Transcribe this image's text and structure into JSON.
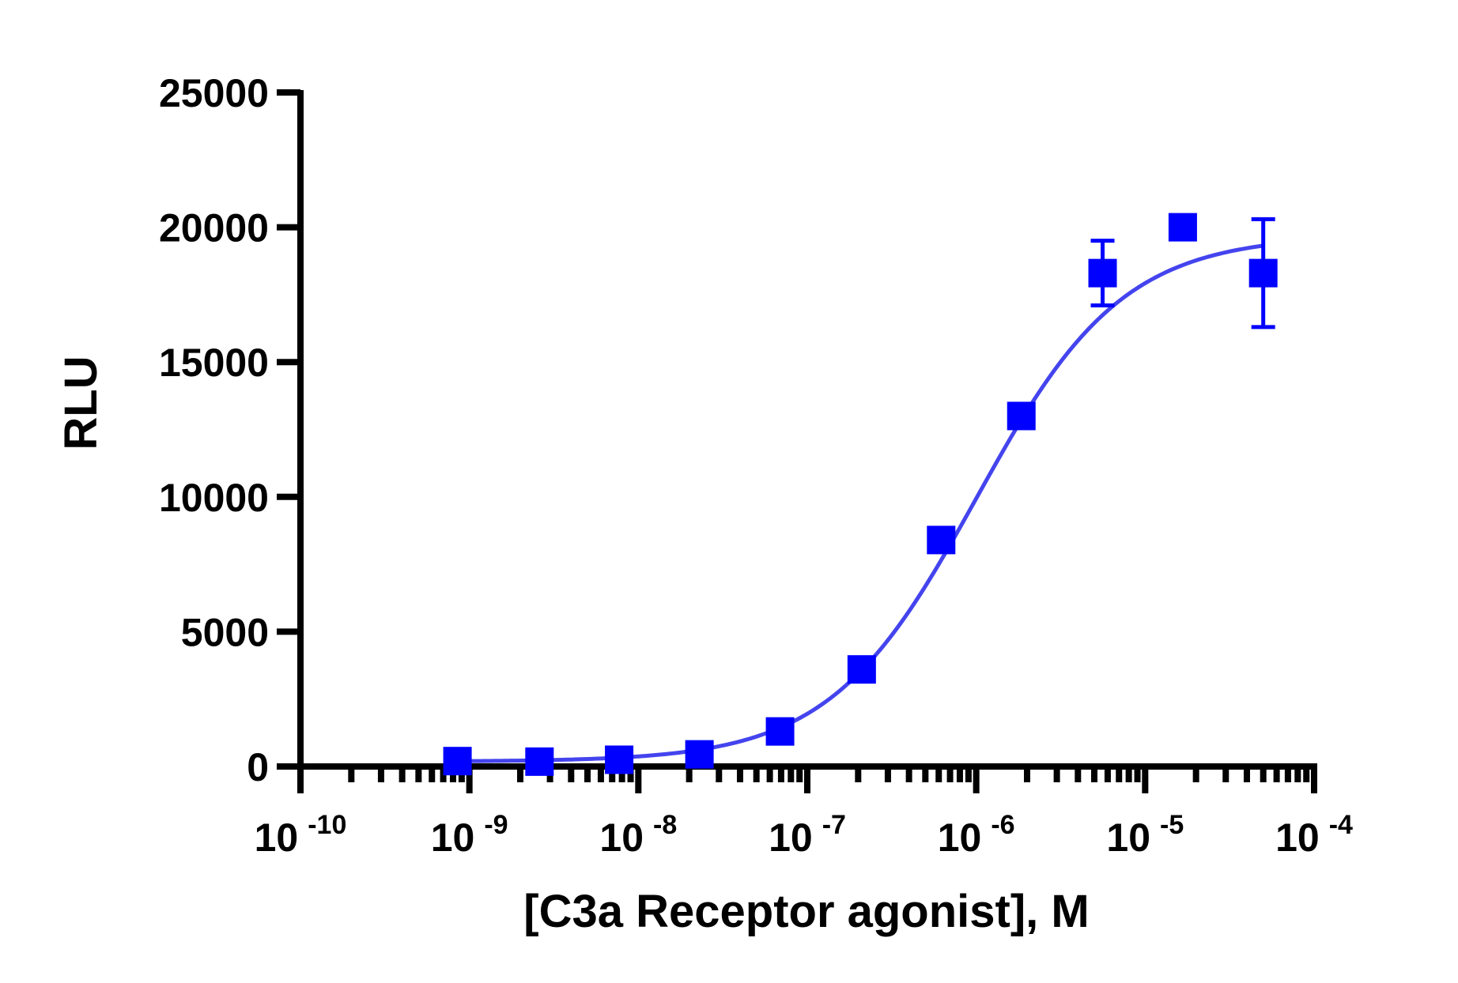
{
  "chart_data": {
    "type": "scatter",
    "title": "",
    "xlabel": "[C3a Receptor agonist], M",
    "ylabel": "RLU",
    "x_scale": "log",
    "xlim": [
      1e-10,
      0.0001
    ],
    "ylim": [
      0,
      25000
    ],
    "x_tick_base": "10",
    "x_tick_exponents": [
      "-10",
      "-9",
      "-8",
      "-7",
      "-6",
      "-5",
      "-4"
    ],
    "y_ticks": [
      "0",
      "5000",
      "10000",
      "15000",
      "20000",
      "25000"
    ],
    "y_tick_values": [
      0,
      5000,
      10000,
      15000,
      20000,
      25000
    ],
    "grid": false,
    "legend": "none",
    "series": [
      {
        "marker": "square",
        "color": "#0000ff",
        "x": [
          8.5e-10,
          2.6e-09,
          7.7e-09,
          2.3e-08,
          6.9e-08,
          2.1e-07,
          6.2e-07,
          1.85e-06,
          5.6e-06,
          1.67e-05,
          5e-05
        ],
        "y": [
          200,
          180,
          250,
          450,
          1300,
          3600,
          8400,
          13000,
          18300,
          20000,
          18300
        ],
        "error": [
          0,
          0,
          0,
          0,
          0,
          0,
          0,
          0,
          1200,
          0,
          2000
        ]
      }
    ],
    "fit_curve": {
      "model": "4PL",
      "color": "#4444ee",
      "bottom": 180,
      "top": 19700,
      "ec50": 1e-06,
      "hill": 1.0
    }
  }
}
